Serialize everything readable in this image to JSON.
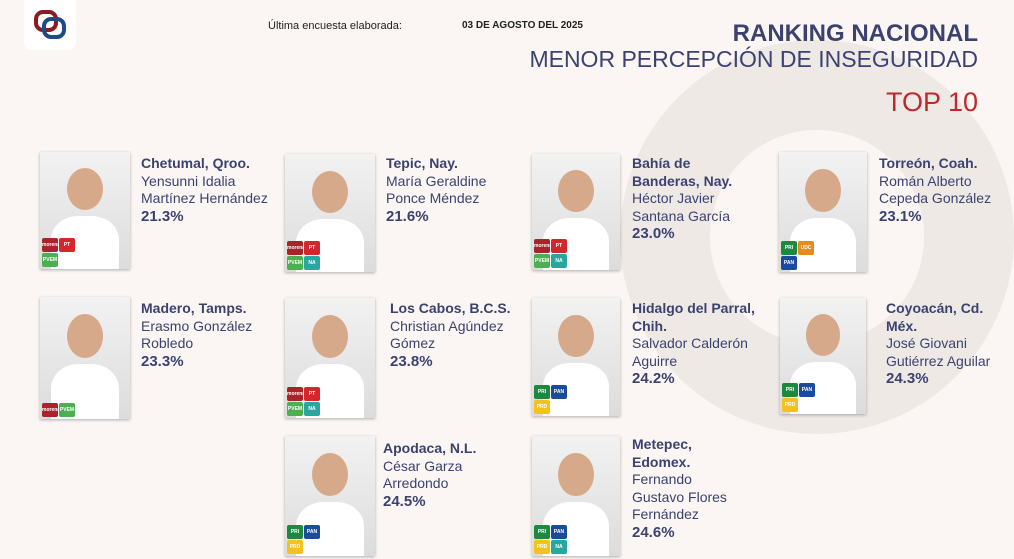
{
  "header": {
    "last_survey_label": "Última encuesta elaborada:",
    "date": "03 DE AGOSTO DEL 2025",
    "title": "RANKING NACIONAL",
    "subtitle": "MENOR PERCEPCIÓN DE INSEGURIDAD",
    "top": "TOP 10"
  },
  "colors": {
    "navy": "#3b4270",
    "red": "#c0282d"
  },
  "candidates": [
    {
      "city": "Chetumal, Qroo.",
      "name": "Yensunni Idalia Martínez Hernández",
      "pct": "21.3%",
      "parties": [
        "morena",
        "PT",
        "PVEM"
      ]
    },
    {
      "city": "Tepic, Nay.",
      "name": "María Geraldine Ponce Méndez",
      "pct": "21.6%",
      "parties": [
        "morena",
        "PT",
        "PVEM",
        "NA"
      ]
    },
    {
      "city": "Bahía de Banderas, Nay.",
      "name": "Héctor Javier Santana García",
      "pct": "23.0%",
      "parties": [
        "morena",
        "PT",
        "PVEM",
        "NA"
      ]
    },
    {
      "city": "Torreón, Coah.",
      "name": "Román Alberto Cepeda González",
      "pct": "23.1%",
      "parties": [
        "PRI",
        "UDC",
        "PAN"
      ]
    },
    {
      "city": "Madero, Tamps.",
      "name": "Erasmo González Robledo",
      "pct": "23.3%",
      "parties": [
        "morena",
        "PVEM"
      ]
    },
    {
      "city": "Los Cabos, B.C.S.",
      "name": "Christian Agúndez Gómez",
      "pct": "23.8%",
      "parties": [
        "morena",
        "PT",
        "PVEM",
        "NA"
      ]
    },
    {
      "city": "Hidalgo del Parral, Chih.",
      "name": "Salvador Calderón Aguirre",
      "pct": "24.2%",
      "parties": [
        "PRI",
        "PAN",
        "PRD"
      ]
    },
    {
      "city": "Coyoacán, Cd. Méx.",
      "name": "José Giovani Gutiérrez Aguilar",
      "pct": "24.3%",
      "parties": [
        "PRI",
        "PAN",
        "PRD"
      ]
    },
    {
      "city": "Apodaca, N.L.",
      "name": "César Garza Arredondo",
      "pct": "24.5%",
      "parties": [
        "PRI",
        "PAN",
        "PRD"
      ]
    },
    {
      "city": "Metepec, Edomex.",
      "name": "Fernando Gustavo Flores Fernández",
      "pct": "24.6%",
      "parties": [
        "PRI",
        "PAN",
        "PRD",
        "NA"
      ]
    }
  ]
}
